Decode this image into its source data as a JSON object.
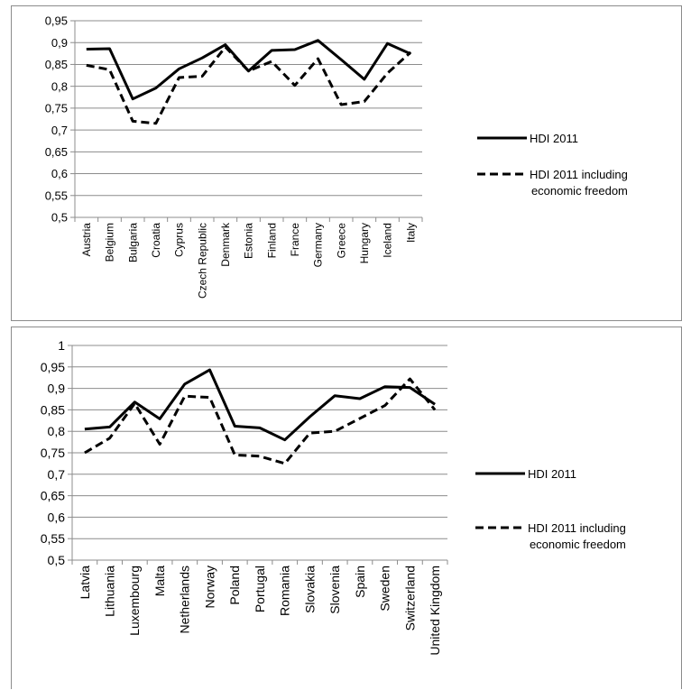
{
  "chart_data": [
    {
      "type": "line",
      "title": "",
      "xlabel": "",
      "ylabel": "",
      "ylim": [
        0.5,
        0.95
      ],
      "y_ticks": [
        "0,5",
        "0,55",
        "0,6",
        "0,65",
        "0,7",
        "0,75",
        "0,8",
        "0,85",
        "0,9",
        "0,95"
      ],
      "grid": "horizontal",
      "legend_position": "right",
      "categories": [
        "Austria",
        "Belgium",
        "Bulgaria",
        "Croatia",
        "Cyprus",
        "Czech Republic",
        "Denmark",
        "Estonia",
        "Finland",
        "France",
        "Germany",
        "Greece",
        "Hungary",
        "Iceland",
        "Italy"
      ],
      "series": [
        {
          "name": "HDI 2011",
          "style": "solid",
          "color": "#000000",
          "values": [
            0.885,
            0.886,
            0.771,
            0.796,
            0.84,
            0.865,
            0.895,
            0.835,
            0.882,
            0.884,
            0.905,
            0.861,
            0.816,
            0.898,
            0.874
          ]
        },
        {
          "name": "HDI 2011 including economic freedom",
          "style": "dashed",
          "color": "#000000",
          "values": [
            0.848,
            0.838,
            0.72,
            0.715,
            0.82,
            0.823,
            0.89,
            0.835,
            0.857,
            0.802,
            0.863,
            0.758,
            0.765,
            0.83,
            0.878
          ]
        }
      ]
    },
    {
      "type": "line",
      "title": "",
      "xlabel": "",
      "ylabel": "",
      "ylim": [
        0.5,
        1
      ],
      "y_ticks": [
        "0,5",
        "0,55",
        "0,6",
        "0,65",
        "0,7",
        "0,75",
        "0,8",
        "0,85",
        "0,9",
        "0,95",
        "1"
      ],
      "grid": "horizontal",
      "legend_position": "right",
      "categories": [
        "Latvia",
        "Lithuania",
        "Luxembourg",
        "Malta",
        "Netherlands",
        "Norway",
        "Poland",
        "Portugal",
        "Romania",
        "Slovakia",
        "Slovenia",
        "Spain",
        "Sweden",
        "Switzerland",
        "United Kingdom"
      ],
      "series": [
        {
          "name": "HDI 2011",
          "style": "solid",
          "color": "#000000",
          "values": [
            0.805,
            0.81,
            0.868,
            0.829,
            0.91,
            0.943,
            0.812,
            0.808,
            0.78,
            0.834,
            0.883,
            0.876,
            0.904,
            0.902,
            0.863
          ]
        },
        {
          "name": "HDI 2011 including economic freedom",
          "style": "dashed",
          "color": "#000000",
          "values": [
            0.75,
            0.784,
            0.865,
            0.77,
            0.882,
            0.879,
            0.745,
            0.742,
            0.725,
            0.796,
            0.8,
            0.83,
            0.86,
            0.922,
            0.85
          ]
        }
      ]
    }
  ]
}
